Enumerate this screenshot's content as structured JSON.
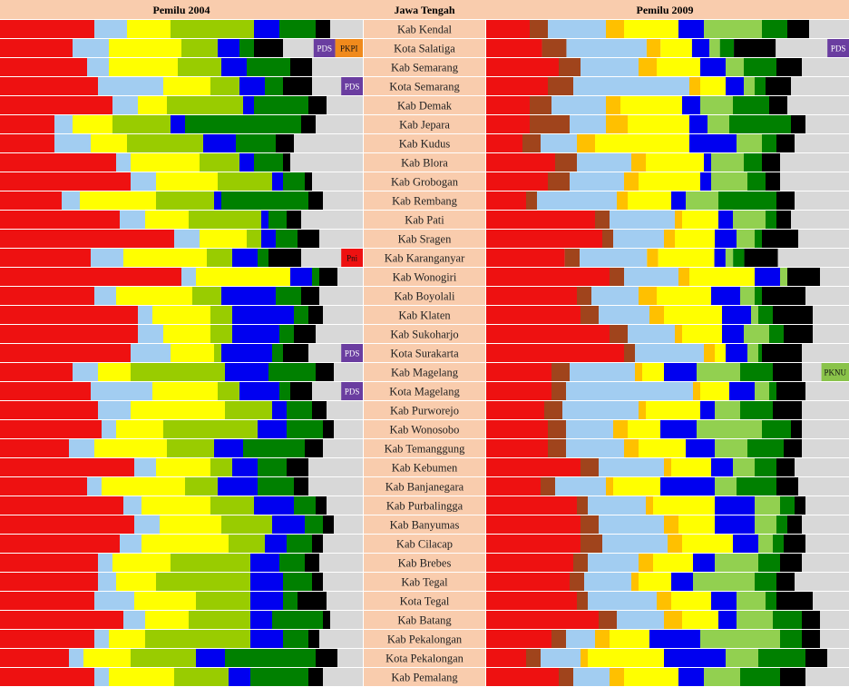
{
  "headers": {
    "left": "Pemilu 2004",
    "center": "Jawa Tengah",
    "right": "Pemilu 2009"
  },
  "colors": {
    "header_bg": "#f9ccad",
    "label_bg": "#f9ccad",
    "gap_bg": "#ffffff",
    "tag_pds": "#6a3da0",
    "tag_pkpi": "#f08a1c",
    "tag_pni": "#ee1111",
    "tag_pknu": "#8ac34a",
    "segments": {
      "PDIP": "#ee1111",
      "PKB": "#a2cdf1",
      "GOLKAR": "#ffff00",
      "PAN": "#99cc00",
      "DEMOKRAT": "#0000f0",
      "PKS": "#008000",
      "PPP": "#000000",
      "OTHER": "#d8d8d8",
      "GERINDRA": "#a0441c",
      "HANURA": "#ffc000",
      "DEMOKRAT09": "#ffff00",
      "PAN09": "#99cc00",
      "GOLKAR09": "#0000f0",
      "PKS09": "#92d050",
      "PPP09": "#008000",
      "PKB09": "#000000"
    }
  },
  "chart_data": {
    "type": "bar",
    "stacked": true,
    "orientation": "horizontal",
    "ylim": [
      0,
      100
    ],
    "grid": false,
    "legend": "none",
    "categories": [
      "Kab Kendal",
      "Kota Salatiga",
      "Kab Semarang",
      "Kota Semarang",
      "Kab Demak",
      "Kab Jepara",
      "Kab Kudus",
      "Kab Blora",
      "Kab Grobogan",
      "Kab Rembang",
      "Kab Pati",
      "Kab Sragen",
      "Kab Karanganyar",
      "Kab Wonogiri",
      "Kab Boyolali",
      "Kab Klaten",
      "Kab Sukoharjo",
      "Kota Surakarta",
      "Kab Magelang",
      "Kota Magelang",
      "Kab Purworejo",
      "Kab Wonosobo",
      "Kab Temanggung",
      "Kab Kebumen",
      "Kab Banjanegara",
      "Kab Purbalingga",
      "Kab Banyumas",
      "Kab Cilacap",
      "Kab Brebes",
      "Kab Tegal",
      "Kota Tegal",
      "Kab Batang",
      "Kab Pekalongan",
      "Kota Pekalongan",
      "Kab Pemalang"
    ],
    "charts": [
      {
        "name": "Pemilu 2004",
        "segment_colors": [
          "#ee1111",
          "#a2cdf1",
          "#ffff00",
          "#99cc00",
          "#0000f0",
          "#008000",
          "#000000",
          "#d8d8d8"
        ],
        "rows": [
          [
            26,
            9,
            12,
            23,
            7,
            10,
            4,
            9
          ],
          [
            20,
            10,
            20,
            10,
            6,
            4,
            8,
            22
          ],
          [
            24,
            6,
            19,
            12,
            7,
            12,
            6,
            14
          ],
          [
            27,
            18,
            13,
            8,
            7,
            5,
            8,
            14
          ],
          [
            31,
            7,
            8,
            21,
            3,
            15,
            5,
            10
          ],
          [
            15,
            5,
            11,
            16,
            4,
            32,
            4,
            13
          ],
          [
            15,
            10,
            10,
            21,
            9,
            11,
            5,
            19
          ],
          [
            32,
            4,
            19,
            11,
            4,
            8,
            2,
            20
          ],
          [
            36,
            7,
            17,
            15,
            3,
            6,
            2,
            14
          ],
          [
            17,
            5,
            21,
            16,
            2,
            24,
            4,
            11
          ],
          [
            33,
            7,
            12,
            20,
            2,
            5,
            4,
            17
          ],
          [
            48,
            7,
            13,
            4,
            4,
            6,
            6,
            12
          ],
          [
            25,
            9,
            23,
            7,
            7,
            3,
            9,
            17
          ],
          [
            50,
            4,
            26,
            0,
            6,
            2,
            5,
            7
          ],
          [
            26,
            6,
            21,
            8,
            15,
            7,
            5,
            12
          ],
          [
            38,
            4,
            16,
            6,
            17,
            4,
            4,
            11
          ],
          [
            38,
            7,
            13,
            6,
            13,
            4,
            6,
            13
          ],
          [
            36,
            11,
            12,
            2,
            14,
            3,
            7,
            15
          ],
          [
            20,
            7,
            9,
            26,
            12,
            13,
            5,
            8
          ],
          [
            25,
            17,
            18,
            6,
            11,
            3,
            6,
            14
          ],
          [
            27,
            9,
            26,
            13,
            4,
            7,
            4,
            10
          ],
          [
            28,
            4,
            13,
            26,
            8,
            10,
            3,
            8
          ],
          [
            19,
            7,
            20,
            13,
            8,
            17,
            5,
            11
          ],
          [
            37,
            6,
            15,
            6,
            7,
            8,
            6,
            15
          ],
          [
            24,
            4,
            23,
            9,
            11,
            10,
            4,
            15
          ],
          [
            34,
            5,
            19,
            12,
            11,
            6,
            3,
            10
          ],
          [
            37,
            7,
            17,
            14,
            9,
            5,
            3,
            8
          ],
          [
            33,
            6,
            24,
            10,
            6,
            7,
            3,
            11
          ],
          [
            27,
            4,
            16,
            22,
            8,
            7,
            4,
            12
          ],
          [
            27,
            5,
            11,
            26,
            9,
            8,
            3,
            11
          ],
          [
            26,
            11,
            17,
            15,
            9,
            4,
            8,
            10
          ],
          [
            34,
            6,
            12,
            17,
            6,
            14,
            2,
            9
          ],
          [
            26,
            4,
            10,
            29,
            9,
            7,
            3,
            12
          ],
          [
            19,
            4,
            13,
            18,
            8,
            25,
            6,
            7
          ],
          [
            26,
            4,
            18,
            15,
            6,
            16,
            4,
            11
          ]
        ]
      },
      {
        "name": "Pemilu 2009",
        "segment_colors": [
          "#ee1111",
          "#a0441c",
          "#a2cdf1",
          "#ffc000",
          "#ffff00",
          "#99cc00",
          "#0000f0",
          "#92d050",
          "#008000",
          "#000000",
          "#d8d8d8"
        ],
        "rows": [
          [
            12,
            5,
            16,
            5,
            15,
            0,
            7,
            16,
            7,
            6,
            11
          ],
          [
            16,
            7,
            23,
            4,
            9,
            0,
            5,
            3,
            4,
            12,
            21
          ],
          [
            20,
            6,
            16,
            5,
            12,
            0,
            7,
            5,
            9,
            7,
            13
          ],
          [
            17,
            7,
            32,
            3,
            7,
            0,
            5,
            3,
            3,
            7,
            16
          ],
          [
            12,
            6,
            15,
            4,
            17,
            0,
            5,
            9,
            10,
            5,
            17
          ],
          [
            12,
            11,
            10,
            6,
            17,
            0,
            5,
            6,
            17,
            4,
            12
          ],
          [
            10,
            5,
            10,
            5,
            26,
            0,
            13,
            7,
            4,
            5,
            15
          ],
          [
            19,
            6,
            15,
            4,
            16,
            0,
            2,
            9,
            5,
            5,
            19
          ],
          [
            17,
            6,
            15,
            4,
            17,
            0,
            3,
            10,
            5,
            4,
            19
          ],
          [
            11,
            3,
            22,
            3,
            12,
            0,
            4,
            9,
            16,
            5,
            15
          ],
          [
            30,
            4,
            18,
            2,
            10,
            0,
            4,
            9,
            3,
            4,
            16
          ],
          [
            32,
            3,
            14,
            3,
            11,
            0,
            6,
            5,
            2,
            10,
            14
          ],
          [
            21,
            4,
            18,
            3,
            15,
            0,
            3,
            2,
            3,
            9,
            19
          ],
          [
            34,
            4,
            15,
            3,
            18,
            0,
            7,
            2,
            0,
            9,
            8
          ],
          [
            25,
            4,
            13,
            5,
            15,
            0,
            8,
            4,
            2,
            12,
            12
          ],
          [
            26,
            5,
            14,
            4,
            16,
            0,
            8,
            2,
            4,
            11,
            10
          ],
          [
            34,
            5,
            13,
            2,
            11,
            0,
            6,
            7,
            4,
            8,
            10
          ],
          [
            38,
            3,
            19,
            3,
            3,
            0,
            6,
            3,
            1,
            11,
            13
          ],
          [
            18,
            5,
            18,
            2,
            6,
            0,
            9,
            12,
            9,
            8,
            13
          ],
          [
            18,
            4,
            35,
            2,
            8,
            0,
            7,
            4,
            2,
            8,
            12
          ],
          [
            16,
            5,
            21,
            2,
            15,
            0,
            4,
            7,
            9,
            8,
            13
          ],
          [
            17,
            5,
            13,
            4,
            9,
            0,
            10,
            18,
            8,
            3,
            13
          ],
          [
            17,
            5,
            16,
            4,
            13,
            0,
            8,
            9,
            10,
            5,
            13
          ],
          [
            26,
            5,
            18,
            2,
            11,
            0,
            6,
            6,
            6,
            5,
            15
          ],
          [
            15,
            4,
            14,
            2,
            13,
            0,
            15,
            6,
            11,
            6,
            14
          ],
          [
            25,
            3,
            16,
            2,
            17,
            0,
            11,
            7,
            4,
            3,
            12
          ],
          [
            26,
            5,
            18,
            4,
            10,
            0,
            11,
            6,
            3,
            4,
            13
          ],
          [
            26,
            6,
            18,
            4,
            14,
            0,
            7,
            4,
            3,
            6,
            12
          ],
          [
            24,
            4,
            14,
            4,
            11,
            0,
            6,
            12,
            6,
            6,
            13
          ],
          [
            23,
            4,
            13,
            2,
            9,
            0,
            6,
            17,
            6,
            5,
            15
          ],
          [
            25,
            3,
            19,
            4,
            11,
            0,
            7,
            8,
            3,
            10,
            10
          ],
          [
            31,
            5,
            13,
            5,
            10,
            0,
            5,
            10,
            8,
            5,
            8
          ],
          [
            18,
            4,
            8,
            4,
            11,
            0,
            14,
            22,
            6,
            5,
            8
          ],
          [
            11,
            4,
            11,
            2,
            21,
            0,
            17,
            9,
            13,
            6,
            6
          ],
          [
            20,
            4,
            10,
            4,
            15,
            0,
            7,
            10,
            11,
            7,
            12
          ]
        ]
      }
    ],
    "annotations": [
      {
        "row": "Kota Salatiga",
        "side": "left",
        "tags": [
          {
            "text": "PDS",
            "color": "#6a3da0"
          },
          {
            "text": "PKPI",
            "color": "#f08a1c"
          }
        ]
      },
      {
        "row": "Kota Semarang",
        "side": "left",
        "tags": [
          {
            "text": "PDS",
            "color": "#6a3da0"
          }
        ]
      },
      {
        "row": "Kab Karanganyar",
        "side": "left",
        "tags": [
          {
            "text": "Pni",
            "color": "#ee1111"
          }
        ]
      },
      {
        "row": "Kota Surakarta",
        "side": "left",
        "tags": [
          {
            "text": "PDS",
            "color": "#6a3da0"
          }
        ]
      },
      {
        "row": "Kota Magelang",
        "side": "left",
        "tags": [
          {
            "text": "PDS",
            "color": "#6a3da0"
          }
        ]
      },
      {
        "row": "Kota Salatiga",
        "side": "right",
        "tags": [
          {
            "text": "PDS",
            "color": "#6a3da0"
          }
        ]
      },
      {
        "row": "Kab Magelang",
        "side": "right",
        "tags": [
          {
            "text": "PKNU",
            "color": "#8ac34a"
          }
        ]
      }
    ]
  }
}
